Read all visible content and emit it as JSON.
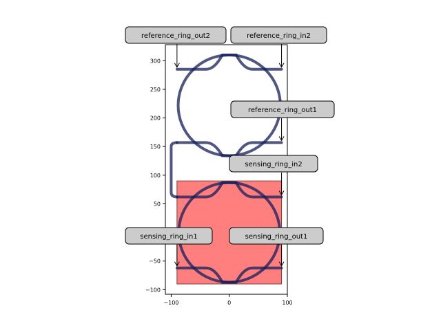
{
  "chart_data": {
    "type": "layout",
    "title": "",
    "xlabel": "",
    "ylabel": "",
    "xlim": [
      -110,
      100
    ],
    "ylim": [
      -108,
      328
    ],
    "xticks": [
      -100,
      0,
      100
    ],
    "xtick_labels": [
      "−100",
      "0",
      "100"
    ],
    "yticks": [
      -100,
      -50,
      0,
      50,
      100,
      150,
      200,
      250,
      300
    ],
    "ytick_labels": [
      "−100",
      "−50",
      "0",
      "50",
      "100",
      "150",
      "200",
      "250",
      "300"
    ],
    "grid": false,
    "colors": {
      "waveguide": "#141e5a",
      "highlight_fill": "#ff7f7f",
      "highlight_edge": "#7a3b3b",
      "label_box": "#cccccc"
    },
    "rings": [
      {
        "name": "reference_ring",
        "center": [
          0,
          222
        ],
        "radius": 88
      },
      {
        "name": "sensing_ring",
        "center": [
          0,
          0
        ],
        "radius": 87
      }
    ],
    "bus_waveguides": [
      {
        "points": [
          [
            -90,
            285
          ],
          [
            -40,
            285
          ],
          [
            40,
            285
          ],
          [
            90,
            285
          ]
        ],
        "curve_toward": [
          0,
          310
        ]
      },
      {
        "points": [
          [
            -90,
            157
          ],
          [
            -40,
            157
          ],
          [
            40,
            157
          ],
          [
            90,
            157
          ]
        ],
        "curve_toward": [
          0,
          134
        ]
      },
      {
        "points": [
          [
            -90,
            62
          ],
          [
            -40,
            62
          ],
          [
            40,
            62
          ],
          [
            90,
            62
          ]
        ],
        "curve_toward": [
          0,
          87
        ]
      },
      {
        "points": [
          [
            -90,
            -62
          ],
          [
            -40,
            -62
          ],
          [
            40,
            -62
          ],
          [
            90,
            -62
          ]
        ],
        "curve_toward": [
          0,
          -87
        ]
      }
    ],
    "connector": [
      [
        -90,
        157
      ],
      [
        -100,
        150
      ],
      [
        -100,
        70
      ],
      [
        -90,
        62
      ]
    ],
    "highlight_region": {
      "x0": -90,
      "y0": -90,
      "x1": 90,
      "y1": 90
    },
    "annotations": [
      {
        "text": "reference_ring_out2",
        "point": [
          -90,
          285
        ],
        "anchor": "left"
      },
      {
        "text": "reference_ring_in2",
        "point": [
          90,
          285
        ],
        "anchor": "right"
      },
      {
        "text": "reference_ring_out1",
        "point": [
          90,
          157
        ],
        "anchor": "right"
      },
      {
        "text": "sensing_ring_in2",
        "point": [
          90,
          62
        ],
        "anchor": "right"
      },
      {
        "text": "sensing_ring_in1",
        "point": [
          -90,
          -62
        ],
        "anchor": "left"
      },
      {
        "text": "sensing_ring_out1",
        "point": [
          90,
          -62
        ],
        "anchor": "right"
      }
    ]
  }
}
